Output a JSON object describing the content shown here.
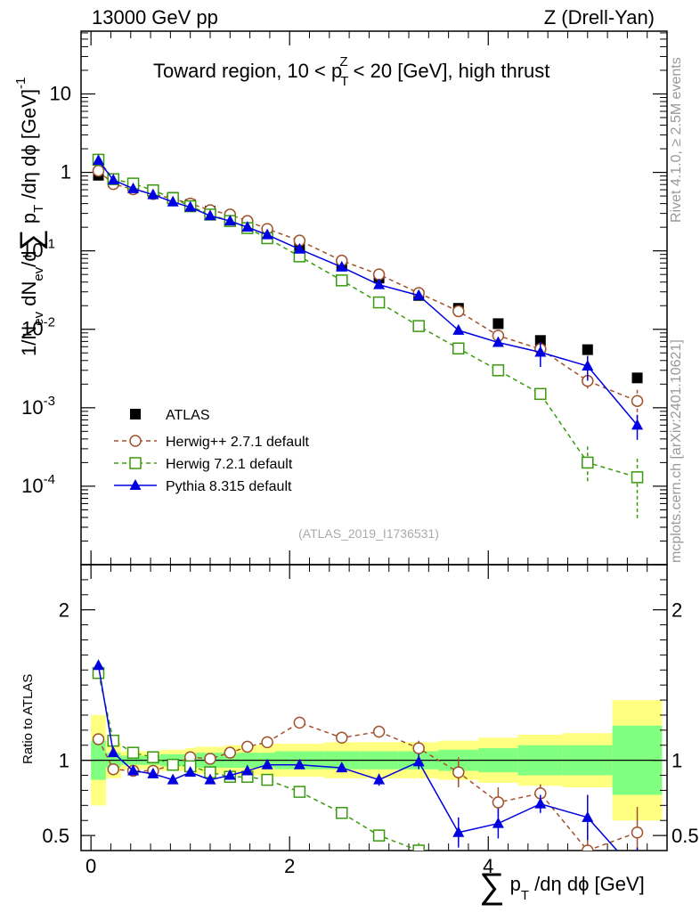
{
  "header": {
    "left": "13000 GeV pp",
    "right": "Z (Drell-Yan)",
    "title_main": "Toward region, 10 < p",
    "title_sub": "T",
    "title_sup": "Z",
    "title_tail": " < 20 [GeV], high thrust"
  },
  "side_labels": {
    "rivet": "Rivet 4.1.0, ≥ 2.5M events",
    "mcplots": "mcplots.cern.ch [arXiv:2401.10621]"
  },
  "watermark": "(ATLAS_2019_I1736531)",
  "axes": {
    "main_ylabel": "1/N_ev dN_ev/d∑p_T/dη dφ [GeV]^-1",
    "ratio_ylabel": "Ratio to ATLAS",
    "xlabel": "∑p_T/dη dφ [GeV]",
    "main_yticks": [
      "10^-4",
      "10^-3",
      "10^-2",
      "10^-1",
      "1",
      "10"
    ],
    "ratio_yticks": [
      "0.5",
      "1",
      "2"
    ],
    "xticks": [
      "0",
      "2",
      "4"
    ]
  },
  "legend": [
    {
      "label": "ATLAS",
      "color": "#000000",
      "marker": "square-filled",
      "style": "none"
    },
    {
      "label": "Herwig++ 2.7.1 default",
      "color": "#a0522d",
      "marker": "circle-open",
      "style": "dashed"
    },
    {
      "label": "Herwig 7.2.1 default",
      "color": "#3a9a0e",
      "marker": "square-open",
      "style": "dashed"
    },
    {
      "label": "Pythia 8.315 default",
      "color": "#0000e0",
      "marker": "triangle-filled",
      "style": "solid"
    }
  ],
  "chart_data": {
    "type": "scatter",
    "title": "Toward region, 10 < pT^Z < 20 [GeV], high thrust",
    "xlabel": "∑pT/dη dφ [GeV]",
    "ylabel": "1/Nev dNev/d∑pT/dη dφ [GeV]^-1",
    "xlim": [
      -0.1,
      5.8
    ],
    "ylim_log": [
      -5,
      1.8
    ],
    "ratio_ylim": [
      0.4,
      2.3
    ],
    "x": [
      0.075,
      0.225,
      0.425,
      0.625,
      0.825,
      1.0,
      1.2,
      1.4,
      1.575,
      1.775,
      2.1,
      2.525,
      2.9,
      3.3,
      3.7,
      4.1,
      4.525,
      5.0,
      5.5
    ],
    "series": [
      {
        "name": "ATLAS",
        "values": [
          0.92,
          0.76,
          0.66,
          0.57,
          0.48,
          0.39,
          0.32,
          0.27,
          0.22,
          0.168,
          0.108,
          0.065,
          0.045,
          0.027,
          0.0185,
          0.0118,
          0.0072,
          0.0055,
          0.0024
        ]
      },
      {
        "name": "Herwig++ 2.7.1 default",
        "values": [
          1.05,
          0.71,
          0.61,
          0.53,
          0.46,
          0.4,
          0.33,
          0.29,
          0.24,
          0.19,
          0.135,
          0.075,
          0.05,
          0.029,
          0.017,
          0.0083,
          0.0056,
          0.0022,
          0.00122
        ]
      },
      {
        "name": "Herwig 7.2.1 default",
        "values": [
          1.45,
          0.82,
          0.72,
          0.59,
          0.47,
          0.37,
          0.29,
          0.24,
          0.195,
          0.145,
          0.085,
          0.042,
          0.022,
          0.011,
          0.0057,
          0.003,
          0.0015,
          0.0002,
          0.00013
        ]
      },
      {
        "name": "Pythia 8.315 default",
        "values": [
          1.42,
          0.8,
          0.62,
          0.52,
          0.42,
          0.36,
          0.28,
          0.24,
          0.2,
          0.16,
          0.105,
          0.062,
          0.037,
          0.027,
          0.0097,
          0.0068,
          0.0051,
          0.0034,
          0.0006
        ]
      }
    ],
    "ratio": [
      {
        "name": "Herwig++ 2.7.1 default",
        "values": [
          1.14,
          0.94,
          0.93,
          0.93,
          0.97,
          1.02,
          1.01,
          1.05,
          1.09,
          1.12,
          1.25,
          1.15,
          1.19,
          1.08,
          0.92,
          0.72,
          0.78,
          0.4,
          0.52
        ]
      },
      {
        "name": "Herwig 7.2.1 default",
        "values": [
          1.58,
          1.13,
          1.05,
          1.02,
          0.97,
          0.96,
          0.92,
          0.89,
          0.89,
          0.87,
          0.79,
          0.65,
          0.5,
          0.4,
          0.3,
          0.25,
          0.2,
          0.04,
          0.05
        ]
      },
      {
        "name": "Pythia 8.315 default",
        "values": [
          1.63,
          1.05,
          0.93,
          0.91,
          0.87,
          0.92,
          0.87,
          0.9,
          0.93,
          0.97,
          0.97,
          0.95,
          0.87,
          0.99,
          0.52,
          0.58,
          0.71,
          0.62,
          0.25
        ]
      }
    ],
    "band_edges": [
      0,
      0.15,
      0.3,
      0.55,
      0.7,
      0.95,
      1.05,
      1.35,
      1.45,
      1.7,
      1.85,
      2.35,
      2.7,
      3.1,
      3.5,
      3.9,
      4.3,
      4.75,
      5.25,
      5.75
    ],
    "band_yellow": [
      0.3,
      0.12,
      0.06,
      0.06,
      0.07,
      0.08,
      0.09,
      0.1,
      0.1,
      0.11,
      0.11,
      0.12,
      0.12,
      0.12,
      0.13,
      0.15,
      0.17,
      0.18,
      0.4
    ],
    "band_green": [
      0.13,
      0.05,
      0.03,
      0.03,
      0.04,
      0.04,
      0.05,
      0.05,
      0.05,
      0.05,
      0.06,
      0.06,
      0.06,
      0.06,
      0.07,
      0.08,
      0.1,
      0.1,
      0.23
    ],
    "legend_position": "bottom-left"
  }
}
